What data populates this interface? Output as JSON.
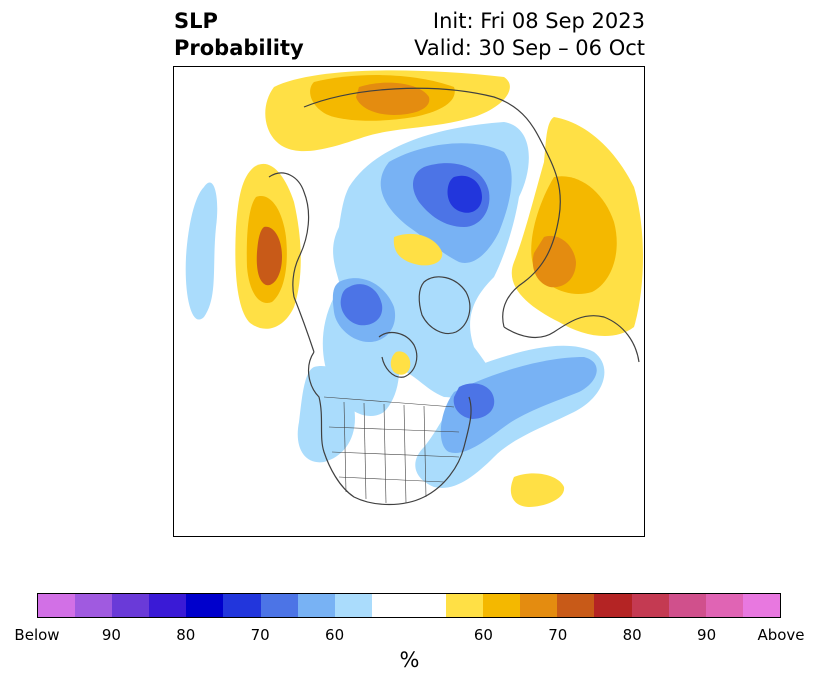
{
  "header": {
    "title_line1": "SLP",
    "title_line2": "Probability",
    "init": "Init: Fri 08 Sep 2023",
    "valid": "Valid: 30 Sep – 06 Oct"
  },
  "colorbar": {
    "colors": [
      "#d270e6",
      "#a05ae0",
      "#6a3ad8",
      "#3a1ad6",
      "#0000cc",
      "#2236dc",
      "#4c74e6",
      "#78b2f4",
      "#aadcfc",
      "#ffffff",
      "#ffffff",
      "#ffe045",
      "#f4b800",
      "#e48c10",
      "#c85a18",
      "#b42424",
      "#c43a52",
      "#d0508c",
      "#e064b4",
      "#e878e0"
    ],
    "tick_labels": [
      "Below",
      "90",
      "80",
      "70",
      "60",
      "60",
      "70",
      "80",
      "90",
      "Above"
    ],
    "unit": "%"
  },
  "map": {
    "projection": "north-polar-stereographic",
    "region": "North America / Arctic"
  }
}
